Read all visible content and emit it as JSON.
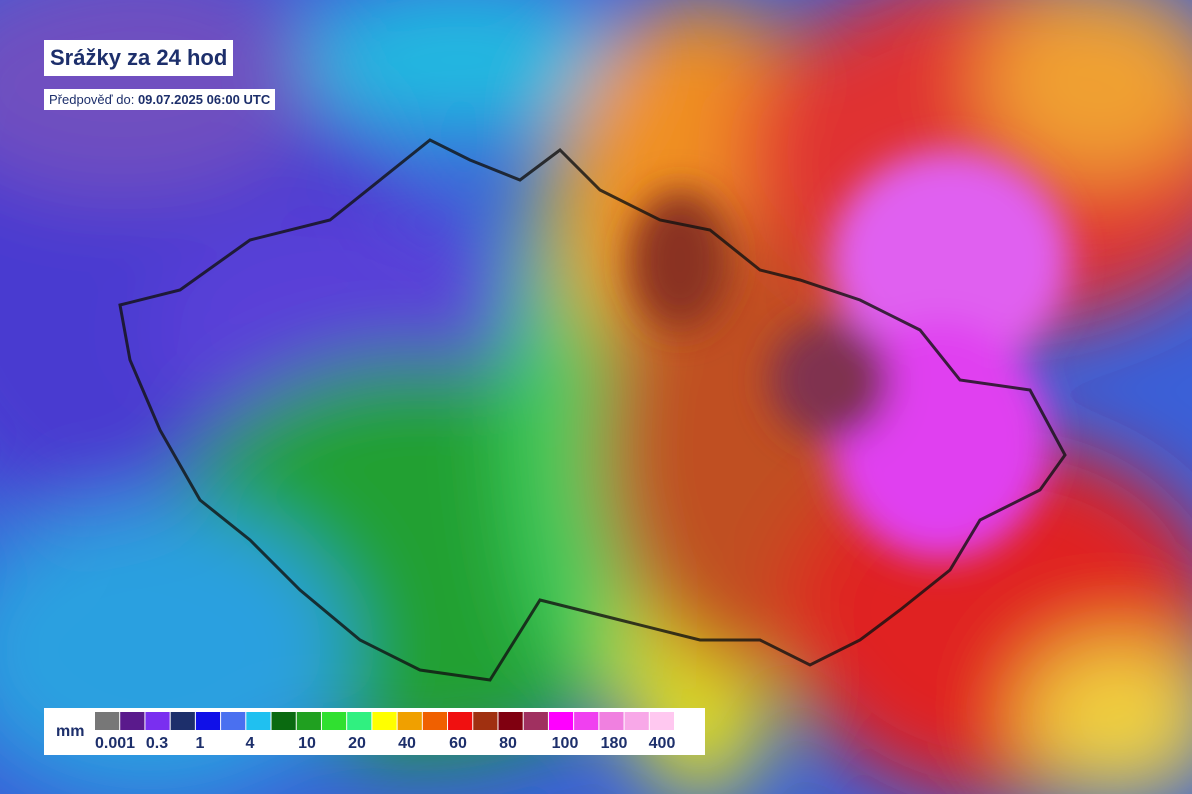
{
  "header": {
    "title": "Srážky za 24 hod",
    "forecast_label": "Předpověď do:",
    "forecast_time": "09.07.2025 06:00 UTC"
  },
  "legend": {
    "unit": "mm",
    "colors": [
      "#777777",
      "#5a1a8c",
      "#7a2ff0",
      "#1d2f6b",
      "#1010e8",
      "#4a70f0",
      "#20c0f0",
      "#0a6a10",
      "#20a020",
      "#30e030",
      "#30f080",
      "#ffff00",
      "#f0a000",
      "#f06000",
      "#f01010",
      "#a03010",
      "#800010",
      "#a03060",
      "#ff00ff",
      "#f040f0",
      "#f080e0",
      "#f8a8e8",
      "#ffc8f0"
    ],
    "labels": [
      "0.001",
      "0.3",
      "1",
      "4",
      "10",
      "20",
      "40",
      "60",
      "80",
      "100",
      "180",
      "400"
    ]
  }
}
